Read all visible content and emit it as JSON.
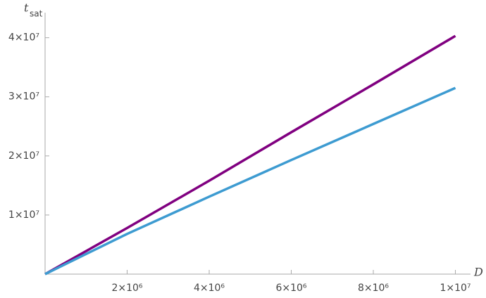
{
  "chart_data": {
    "type": "line",
    "x_label": "D",
    "y_label": {
      "symbol": "t",
      "subscript": "sat"
    },
    "x": [
      0,
      2000000,
      4000000,
      6000000,
      8000000,
      10000000
    ],
    "series": [
      {
        "color": "#800080",
        "values": [
          0,
          7800000,
          15800000,
          24000000,
          32100000,
          40300000
        ]
      },
      {
        "color": "#3d9bd1",
        "values": [
          0,
          6800000,
          13100000,
          19300000,
          25400000,
          31500000
        ]
      }
    ],
    "xlim": [
      0,
      10300000
    ],
    "ylim": [
      0,
      44000000
    ],
    "xticks": [
      {
        "value": 2000000,
        "label": "2×10⁶"
      },
      {
        "value": 4000000,
        "label": "4×10⁶"
      },
      {
        "value": 6000000,
        "label": "6×10⁶"
      },
      {
        "value": 8000000,
        "label": "8×10⁶"
      },
      {
        "value": 10000000,
        "label": "1×10⁷"
      }
    ],
    "yticks": [
      {
        "value": 10000000,
        "label": "1×10⁷"
      },
      {
        "value": 20000000,
        "label": "2×10⁷"
      },
      {
        "value": 30000000,
        "label": "3×10⁷"
      },
      {
        "value": 40000000,
        "label": "4×10⁷"
      }
    ]
  }
}
